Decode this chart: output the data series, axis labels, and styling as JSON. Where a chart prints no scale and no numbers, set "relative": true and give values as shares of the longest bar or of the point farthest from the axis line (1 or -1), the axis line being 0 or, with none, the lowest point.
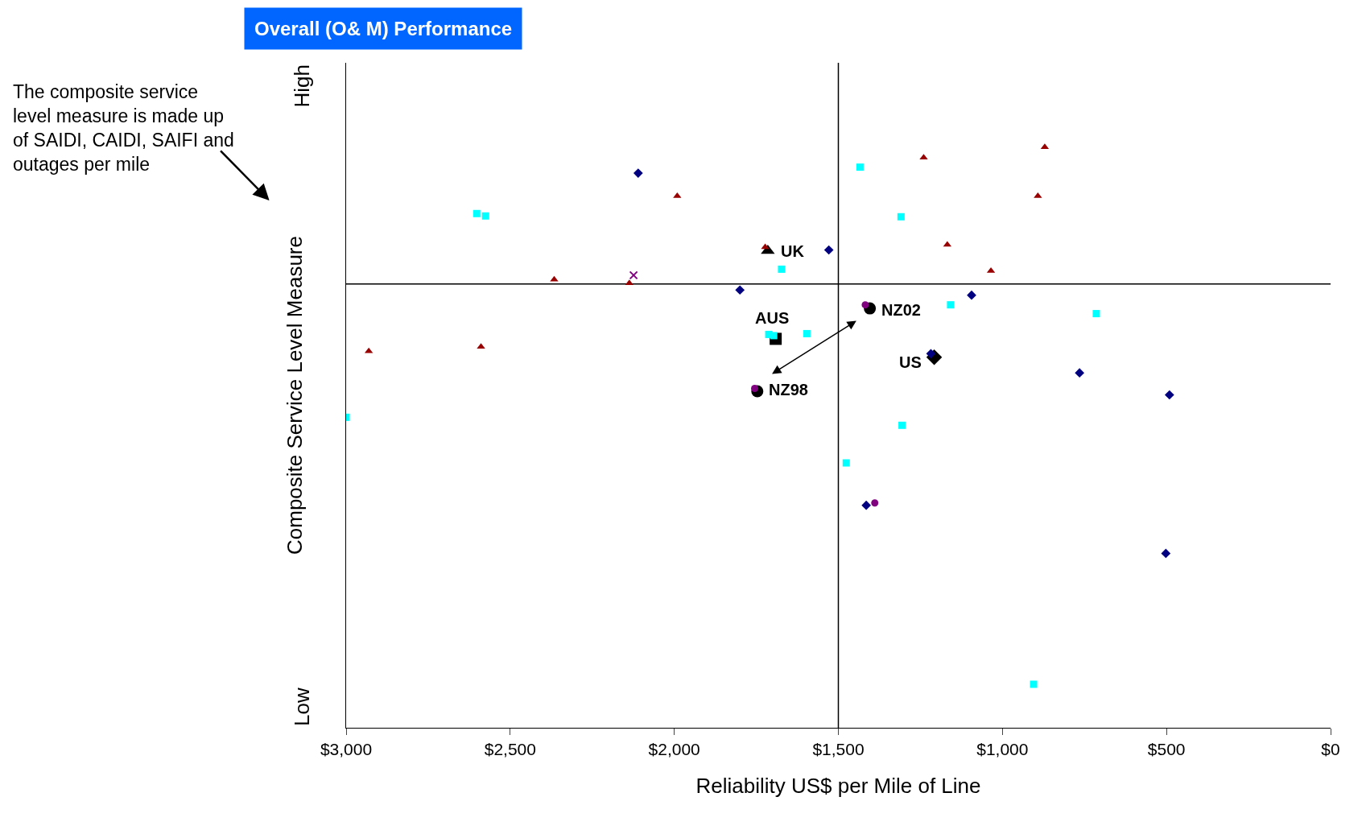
{
  "chart_data": {
    "type": "scatter",
    "title": "Overall (O& M) Performance",
    "xlabel": "Reliability US$ per Mile of Line",
    "ylabel": "Composite Service Level Measure",
    "relative": true,
    "xlim": [
      3000,
      0
    ],
    "xticks": [
      {
        "value": 3000,
        "label": "$3,000"
      },
      {
        "value": 2500,
        "label": "$2,500"
      },
      {
        "value": 2000,
        "label": "$2,000"
      },
      {
        "value": 1500,
        "label": "$1,500"
      },
      {
        "value": 1000,
        "label": "$1,000"
      },
      {
        "value": 500,
        "label": "$500"
      },
      {
        "value": 0,
        "label": "$0"
      }
    ],
    "grid": false,
    "series": [
      {
        "color": "#000000",
        "marker": "triangle",
        "x": [
          1715
        ],
        "values": [
          0.083
        ]
      },
      {
        "color": "#000000",
        "marker": "square",
        "x": [
          1691
        ],
        "values": [
          -0.137
        ]
      },
      {
        "color": "#000000",
        "marker": "diamond",
        "x": [
          1208
        ],
        "values": [
          -0.183
        ]
      },
      {
        "color": "#000000",
        "marker": "circle",
        "x": [
          1747,
          1404
        ],
        "values": [
          -0.268,
          -0.061
        ]
      },
      {
        "color": "#000080",
        "marker": "diamond",
        "x": [
          2110,
          1529,
          1800,
          1094,
          765,
          491,
          1415,
          502,
          1218
        ],
        "values": [
          0.277,
          0.085,
          -0.015,
          -0.028,
          -0.222,
          -0.277,
          -0.553,
          -0.673,
          -0.174
        ]
      },
      {
        "color": "#990000",
        "marker": "triangle",
        "x": [
          871,
          1240,
          1991,
          892,
          1168,
          1035,
          2366,
          2137,
          2931,
          2589,
          1723
        ],
        "values": [
          0.342,
          0.316,
          0.22,
          0.22,
          0.098,
          0.033,
          0.011,
          0.002,
          -0.168,
          -0.157,
          0.092
        ]
      },
      {
        "color": "#00ffff",
        "marker": "square",
        "x": [
          1434,
          2602,
          2575,
          1309,
          1673,
          1158,
          714,
          1596,
          1712,
          1697,
          1306,
          3000,
          1476,
          905
        ],
        "values": [
          0.292,
          0.176,
          0.17,
          0.168,
          0.037,
          -0.052,
          -0.074,
          -0.124,
          -0.126,
          -0.129,
          -0.353,
          -0.333,
          -0.447,
          -1
        ]
      },
      {
        "color": "#800080",
        "marker": "circle",
        "x": [
          1418,
          1755,
          1389
        ],
        "values": [
          -0.052,
          -0.261,
          -0.547
        ]
      },
      {
        "color": "#800080",
        "marker": "cross",
        "x": [
          2124
        ],
        "values": [
          0.022
        ]
      }
    ],
    "ref_lines": [
      {
        "axis": "x",
        "value": 1500,
        "color": "#000000"
      },
      {
        "axis": "y",
        "value": 0,
        "color": "#000000"
      }
    ],
    "annotations": [
      "High",
      "Low",
      "The composite service level measure is made up of SAIDI, CAIDI, SAIFI and outages per mile",
      {
        "text": "UK",
        "x": 1715,
        "y": 0.083
      },
      {
        "text": "AUS",
        "x": 1691,
        "y": -0.137
      },
      {
        "text": "US",
        "x": 1208,
        "y": -0.183
      },
      {
        "text": "NZ98",
        "x": 1747,
        "y": -0.268
      },
      {
        "text": "NZ02",
        "x": 1404,
        "y": -0.061
      }
    ]
  }
}
